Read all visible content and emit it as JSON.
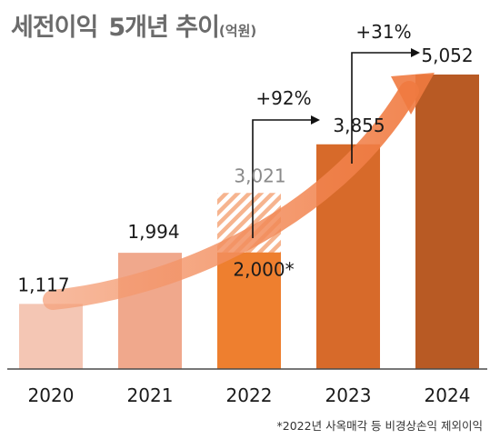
{
  "title": {
    "part1": "세전이익",
    "part2": "5개년 추이",
    "unit": "(억원)"
  },
  "footnote": "*2022년 사옥매각 등 비경상손익 제외이익",
  "colors": {
    "bar_2020": "#f4c6b4",
    "bar_2021": "#f0a88c",
    "bar_2022": "#ee7f2f",
    "bar_2023": "#d76a2a",
    "bar_2024": "#b85a24",
    "hatch": "#f6b48f",
    "arrow": "#f28a5a",
    "label_gray": "#8a8a8a",
    "text": "#1a1a1a"
  },
  "chart_data": {
    "type": "bar",
    "categories": [
      "2020",
      "2021",
      "2022",
      "2023",
      "2024"
    ],
    "values": [
      1117,
      1994,
      2000,
      3855,
      5052
    ],
    "value_labels": [
      "1,117",
      "1,994",
      "2,000*",
      "3,855",
      "5,052"
    ],
    "reported_2022": {
      "value": 3021,
      "label": "3,021"
    },
    "growth": [
      {
        "from": "2022",
        "to": "2023",
        "label": "+92%"
      },
      {
        "from": "2023",
        "to": "2024",
        "label": "+31%"
      }
    ],
    "title": "세전이익 5개년 추이(억원)",
    "xlabel": "",
    "ylabel": "",
    "ylim": [
      0,
      5800
    ]
  }
}
